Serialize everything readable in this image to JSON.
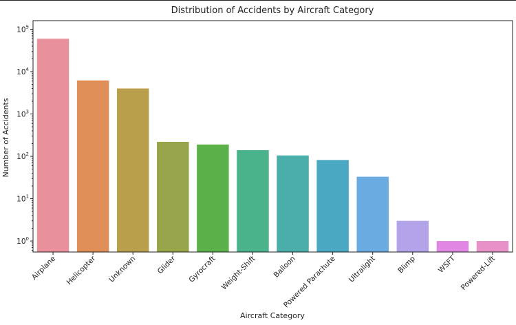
{
  "chart_data": {
    "type": "bar",
    "title": "Distribution of Accidents by Aircraft Category",
    "xlabel": "Aircraft Category",
    "ylabel": "Number of Accidents",
    "yscale": "log",
    "ylim": [
      0.55,
      160000
    ],
    "yticks": [
      {
        "base": "10",
        "exp": "0",
        "value": 1
      },
      {
        "base": "10",
        "exp": "1",
        "value": 10
      },
      {
        "base": "10",
        "exp": "2",
        "value": 100
      },
      {
        "base": "10",
        "exp": "3",
        "value": 1000
      },
      {
        "base": "10",
        "exp": "4",
        "value": 10000
      },
      {
        "base": "10",
        "exp": "5",
        "value": 100000
      }
    ],
    "grid": false,
    "legend": "none",
    "categories": [
      "Airplane",
      "Helicopter",
      "Unknown",
      "Glider",
      "Gyrocraft",
      "Weight-Shift",
      "Balloon",
      "Powered Parachute",
      "Ultralight",
      "Blimp",
      "WSFT",
      "Powered-Lift"
    ],
    "values": [
      60000,
      6200,
      4000,
      220,
      190,
      140,
      105,
      82,
      33,
      3,
      1,
      1
    ],
    "colors": [
      "#e8919c",
      "#e08e57",
      "#b99e4c",
      "#98a44a",
      "#5bb04a",
      "#4bb38b",
      "#4baeaa",
      "#4aa8c2",
      "#6aace2",
      "#b3a4e9",
      "#e086e3",
      "#e891c9"
    ]
  }
}
